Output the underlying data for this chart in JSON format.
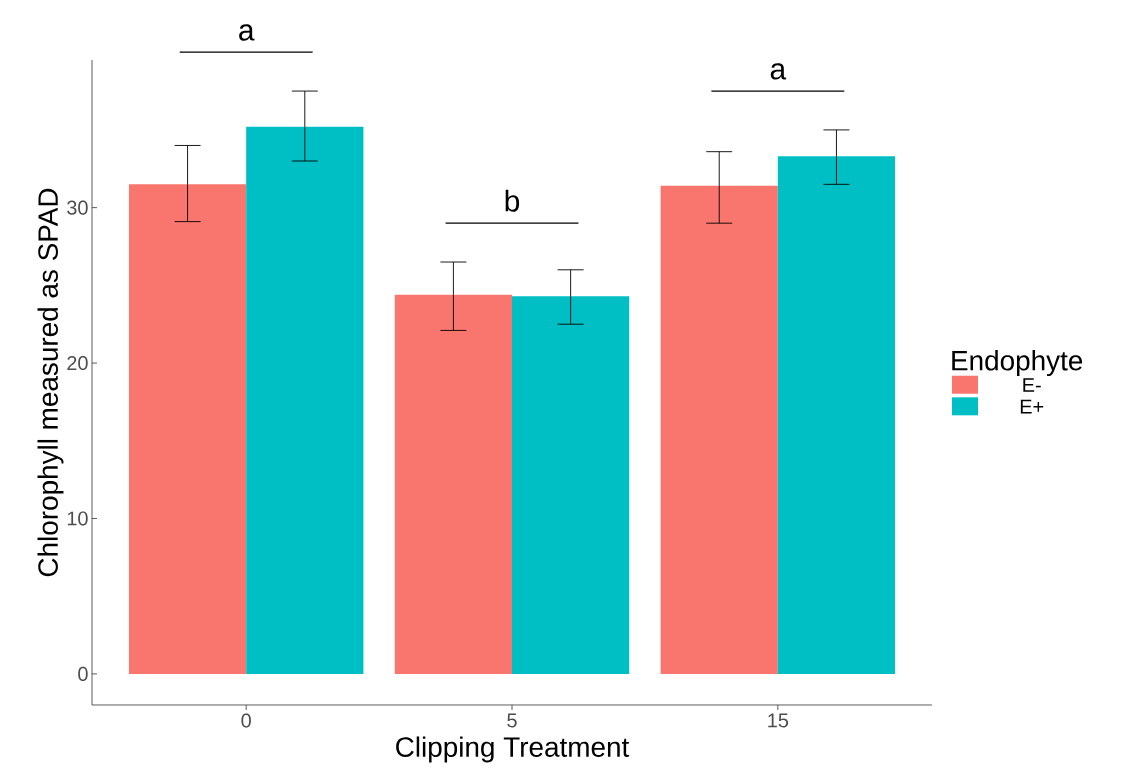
{
  "chart_data": {
    "type": "bar",
    "xlabel": "Clipping Treatment",
    "ylabel": "Chlorophyll measured as SPAD",
    "legend_title": "Endophyte",
    "categories": [
      "0",
      "5",
      "15"
    ],
    "series": [
      {
        "name": "E-",
        "color": "#f8766d",
        "values": [
          31.5,
          24.4,
          31.4
        ],
        "errors": [
          [
            29.1,
            34.0
          ],
          [
            22.1,
            26.5
          ],
          [
            29.0,
            33.6
          ]
        ]
      },
      {
        "name": "E+",
        "color": "#00bfc4",
        "values": [
          35.2,
          24.3,
          33.3
        ],
        "errors": [
          [
            33.0,
            37.5
          ],
          [
            22.5,
            26.0
          ],
          [
            31.5,
            35.0
          ]
        ]
      }
    ],
    "ylim": [
      -2,
      39.5
    ],
    "yticks": [
      0,
      10,
      20,
      30
    ],
    "grid": false,
    "legend": "right",
    "annotations": [
      "a",
      "b",
      "a"
    ]
  }
}
